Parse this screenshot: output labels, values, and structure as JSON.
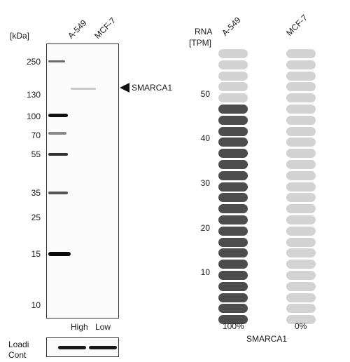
{
  "western_blot": {
    "kda_header": "[kDa]",
    "lanes": [
      "A-549",
      "MCF-7"
    ],
    "markers": [
      "250",
      "130",
      "100",
      "70",
      "55",
      "35",
      "25",
      "15",
      "10"
    ],
    "target_label": "SMARCA1",
    "expression_labels": [
      "High",
      "Low"
    ],
    "loading_label_line1": "Loadi",
    "loading_label_line2": "Cont"
  },
  "rna": {
    "header_line1": "RNA",
    "header_line2": "[TPM]",
    "cell_lines": [
      "A-549",
      "MCF-7"
    ],
    "ticks": [
      "50",
      "40",
      "30",
      "20",
      "10"
    ],
    "total_pills": 25,
    "filled_pills": [
      20,
      0
    ],
    "percentages": [
      "100%",
      "0%"
    ],
    "gene_label": "SMARCA1",
    "colors": {
      "filled": "#4d4d4d",
      "empty": "#d3d3d3"
    }
  }
}
